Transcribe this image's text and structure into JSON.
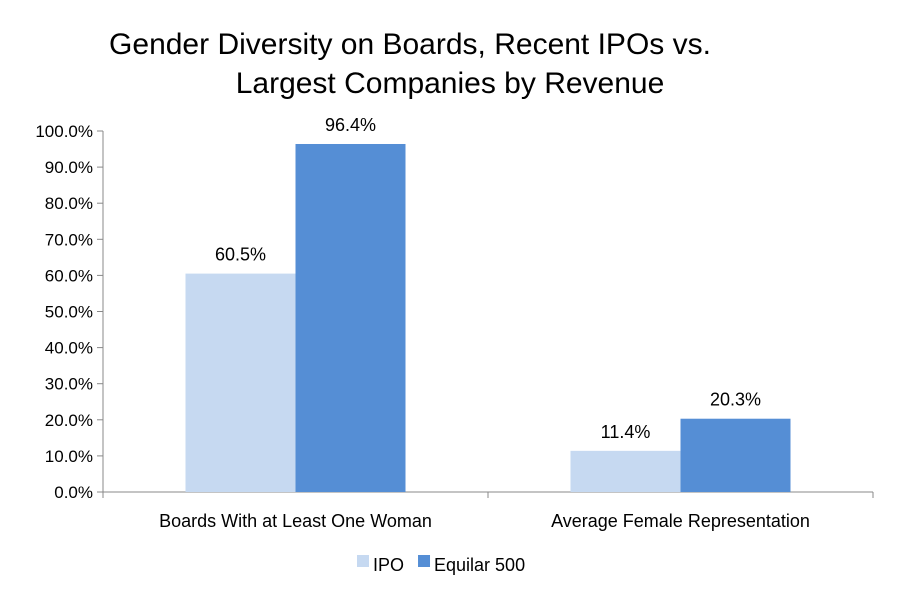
{
  "chart_data": {
    "type": "bar",
    "title": [
      "Gender Diversity on Boards, Recent IPOs vs.",
      "Largest Companies by Revenue"
    ],
    "xlabel": "",
    "ylabel": "",
    "categories": [
      "Boards With at Least One Woman",
      "Average Female Representation"
    ],
    "series": [
      {
        "name": "IPO",
        "values": [
          60.5,
          11.4
        ],
        "labels": [
          "60.5%",
          "11.4%"
        ],
        "color": "#c6d9f1"
      },
      {
        "name": "Equilar 500",
        "values": [
          96.4,
          20.3
        ],
        "labels": [
          "96.4%",
          "20.3%"
        ],
        "color": "#558ed5"
      }
    ],
    "ylim": [
      0,
      100
    ],
    "yticks": [
      0,
      10,
      20,
      30,
      40,
      50,
      60,
      70,
      80,
      90,
      100
    ],
    "ytick_labels": [
      "0.0%",
      "10.0%",
      "20.0%",
      "30.0%",
      "40.0%",
      "50.0%",
      "60.0%",
      "70.0%",
      "80.0%",
      "90.0%",
      "100.0%"
    ],
    "grid": false,
    "legend_position": "bottom"
  }
}
